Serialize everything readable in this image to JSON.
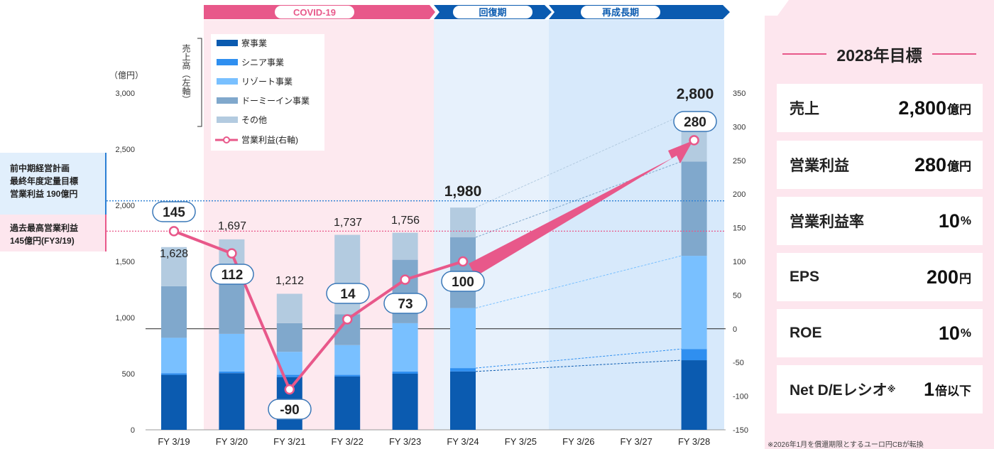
{
  "chart_data": {
    "type": "bar",
    "categories": [
      "FY 3/19",
      "FY 3/20",
      "FY 3/21",
      "FY 3/22",
      "FY 3/23",
      "FY 3/24",
      "FY 3/25",
      "FY 3/26",
      "FY 3/27",
      "FY 3/28"
    ],
    "left_axis": {
      "unit_label": "（億円）",
      "ylim": [
        0,
        3000
      ],
      "ticks": [
        "0",
        "500",
        "1,000",
        "1,500",
        "2,000",
        "2,500",
        "3,000"
      ]
    },
    "right_axis": {
      "ylim": [
        -150,
        350
      ],
      "ticks": [
        "-150",
        "-100",
        "-50",
        "0",
        "50",
        "100",
        "150",
        "200",
        "250",
        "300",
        "350"
      ]
    },
    "series": [
      {
        "name": "寮事業",
        "color": "#0b5bb0",
        "values": [
          490,
          505,
          470,
          475,
          500,
          520,
          null,
          null,
          null,
          620
        ]
      },
      {
        "name": "シニア事業",
        "color": "#2f8ff0",
        "values": [
          15,
          15,
          20,
          15,
          20,
          30,
          null,
          null,
          null,
          100
        ]
      },
      {
        "name": "リゾート事業",
        "color": "#79c0ff",
        "values": [
          315,
          335,
          205,
          265,
          430,
          535,
          null,
          null,
          null,
          830
        ]
      },
      {
        "name": "ドーミーイン事業",
        "color": "#80a8cc",
        "values": [
          460,
          500,
          255,
          275,
          565,
          630,
          null,
          null,
          null,
          840
        ]
      },
      {
        "name": "その他",
        "color": "#b3cbe0",
        "values": [
          348,
          342,
          262,
          707,
          241,
          265,
          null,
          null,
          null,
          410
        ]
      }
    ],
    "totals": [
      "1,628",
      "1,697",
      "1,212",
      "1,737",
      "1,756",
      "1,980",
      "",
      "",
      "",
      "2,800"
    ],
    "line_series": {
      "name": "営業利益(右軸)",
      "color": "#e8588a",
      "values": [
        145,
        112,
        -90,
        14,
        73,
        100,
        null,
        null,
        null,
        280
      ],
      "labels": [
        "145",
        "112",
        "-90",
        "14",
        "73",
        "100",
        "",
        "",
        "",
        "280"
      ]
    },
    "legend_bracket": "売上高（左軸）",
    "phases": [
      {
        "label": "COVID-19",
        "color": "#e8588a"
      },
      {
        "label": "回復期",
        "color": "#0b5bb0"
      },
      {
        "label": "再成長期",
        "color": "#0b5bb0"
      }
    ],
    "reference_lines": [
      {
        "label_lines": [
          "前中期経営計画",
          "最終年度定量目標",
          "営業利益 190億円"
        ],
        "value": 190,
        "color": "#2b7fd4"
      },
      {
        "label_lines": [
          "過去最高営業利益",
          "145億円(FY3/19)"
        ],
        "value": 145,
        "color": "#e8588a"
      }
    ]
  },
  "targets": {
    "title": "2028年目標",
    "items": [
      {
        "label": "売上",
        "value": "2,800",
        "unit": "億円",
        "sup": ""
      },
      {
        "label": "営業利益",
        "value": "280",
        "unit": "億円",
        "sup": ""
      },
      {
        "label": "営業利益率",
        "value": "10",
        "unit": "%",
        "sup": ""
      },
      {
        "label": "EPS",
        "value": "200",
        "unit": "円",
        "sup": ""
      },
      {
        "label": "ROE",
        "value": "10",
        "unit": "%",
        "sup": ""
      },
      {
        "label": "Net D/Eレシオ",
        "value": "1",
        "unit": "倍以下",
        "sup": "※"
      }
    ],
    "footnote": "※2026年1月を償還期限とするユーロ円CBが転換"
  }
}
